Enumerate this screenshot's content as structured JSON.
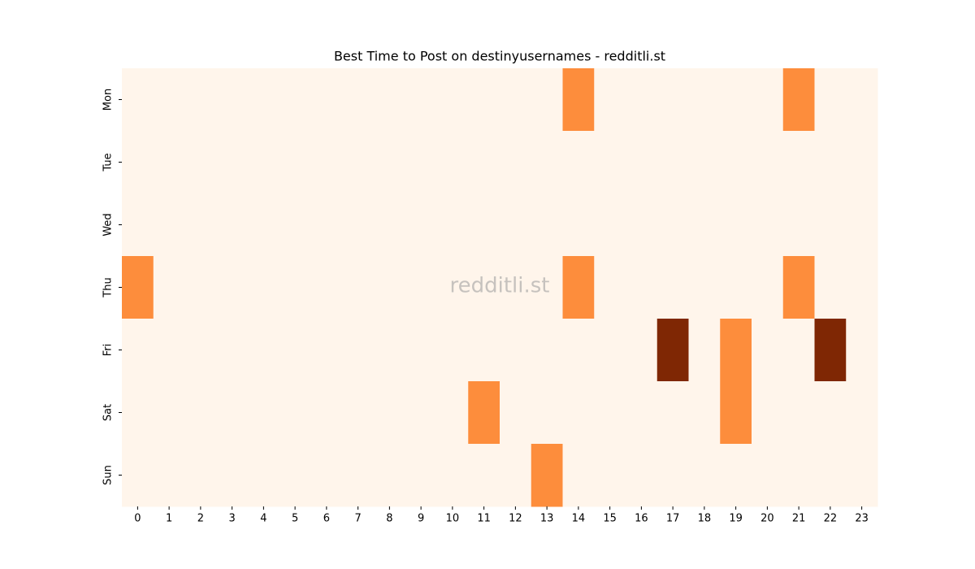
{
  "chart_data": {
    "type": "heatmap",
    "title": "Best Time to Post on destinyusernames - redditli.st",
    "watermark": "redditli.st",
    "rows": [
      "Mon",
      "Tue",
      "Wed",
      "Thu",
      "Fri",
      "Sat",
      "Sun"
    ],
    "columns": [
      0,
      1,
      2,
      3,
      4,
      5,
      6,
      7,
      8,
      9,
      10,
      11,
      12,
      13,
      14,
      15,
      16,
      17,
      18,
      19,
      20,
      21,
      22,
      23
    ],
    "values": [
      [
        0,
        0,
        0,
        0,
        0,
        0,
        0,
        0,
        0,
        0,
        0,
        0,
        0,
        0,
        1,
        0,
        0,
        0,
        0,
        0,
        0,
        1,
        0,
        0
      ],
      [
        0,
        0,
        0,
        0,
        0,
        0,
        0,
        0,
        0,
        0,
        0,
        0,
        0,
        0,
        0,
        0,
        0,
        0,
        0,
        0,
        0,
        0,
        0,
        0
      ],
      [
        0,
        0,
        0,
        0,
        0,
        0,
        0,
        0,
        0,
        0,
        0,
        0,
        0,
        0,
        0,
        0,
        0,
        0,
        0,
        0,
        0,
        0,
        0,
        0
      ],
      [
        1,
        0,
        0,
        0,
        0,
        0,
        0,
        0,
        0,
        0,
        0,
        0,
        0,
        0,
        1,
        0,
        0,
        0,
        0,
        0,
        0,
        1,
        0,
        0
      ],
      [
        0,
        0,
        0,
        0,
        0,
        0,
        0,
        0,
        0,
        0,
        0,
        0,
        0,
        0,
        0,
        0,
        0,
        2,
        0,
        1,
        0,
        0,
        2,
        0
      ],
      [
        0,
        0,
        0,
        0,
        0,
        0,
        0,
        0,
        0,
        0,
        0,
        1,
        0,
        0,
        0,
        0,
        0,
        0,
        0,
        1,
        0,
        0,
        0,
        0
      ],
      [
        0,
        0,
        0,
        0,
        0,
        0,
        0,
        0,
        0,
        0,
        0,
        0,
        0,
        1,
        0,
        0,
        0,
        0,
        0,
        0,
        0,
        0,
        0,
        0
      ]
    ],
    "vlim": [
      0,
      2
    ],
    "colormap": [
      "#fff5eb",
      "#fd8d3c",
      "#7f2704"
    ]
  }
}
